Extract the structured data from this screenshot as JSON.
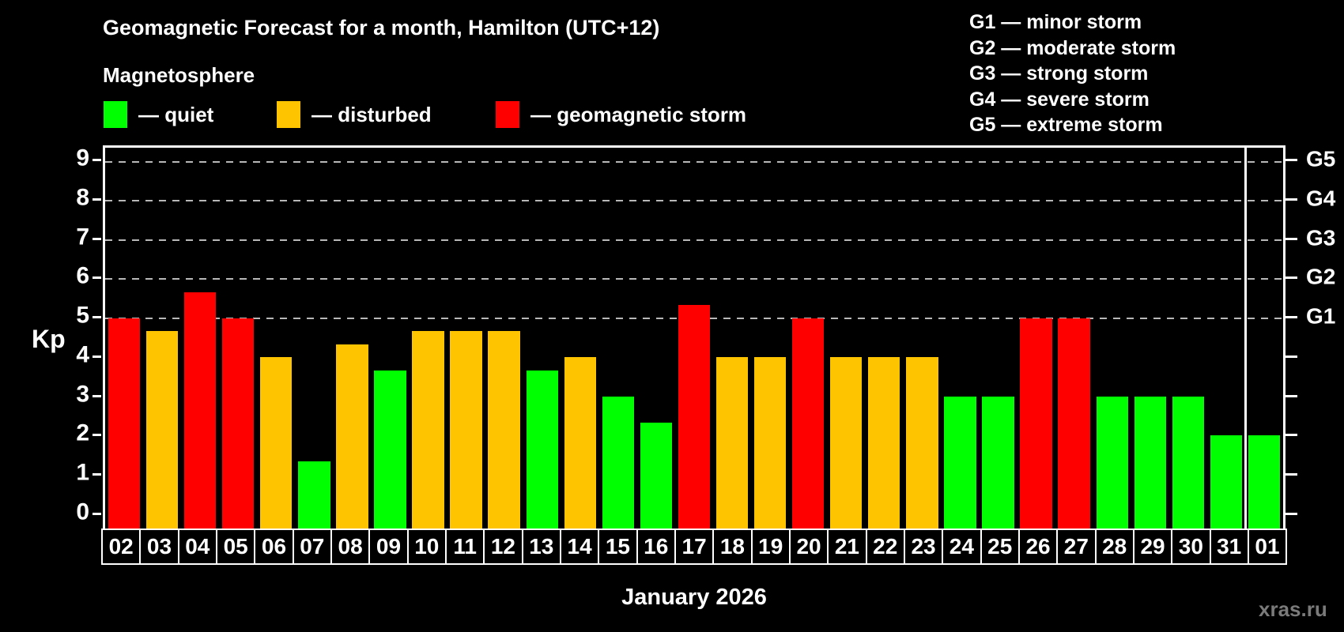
{
  "header": {
    "title": "Geomagnetic Forecast for a month, Hamilton (UTC+12)",
    "subtitle": "Magnetosphere"
  },
  "legend": {
    "items": [
      {
        "status": "quiet",
        "label": "— quiet",
        "color": "#00ff00"
      },
      {
        "status": "disturbed",
        "label": "— disturbed",
        "color": "#ffc400"
      },
      {
        "status": "storm",
        "label": "— geomagnetic storm",
        "color": "#ff0000"
      }
    ]
  },
  "g_legend": {
    "lines": [
      "G1 — minor storm",
      "G2 — moderate storm",
      "G3 — strong storm",
      "G4 — severe storm",
      "G5 — extreme storm"
    ]
  },
  "axes": {
    "y_left_label": "Kp",
    "x_label": "January 2026"
  },
  "watermark": "xras.ru",
  "chart_data": {
    "type": "bar",
    "title": "Geomagnetic Forecast for a month, Hamilton (UTC+12)",
    "subtitle": "Magnetosphere",
    "categories": [
      "02",
      "03",
      "04",
      "05",
      "06",
      "07",
      "08",
      "09",
      "10",
      "11",
      "12",
      "13",
      "14",
      "15",
      "16",
      "17",
      "18",
      "19",
      "20",
      "21",
      "22",
      "23",
      "24",
      "25",
      "26",
      "27",
      "28",
      "29",
      "30",
      "31",
      "01"
    ],
    "values": [
      5.0,
      4.67,
      5.67,
      5.0,
      4.0,
      1.33,
      4.33,
      3.67,
      4.67,
      4.67,
      4.67,
      3.67,
      4.0,
      3.0,
      2.33,
      5.33,
      4.0,
      4.0,
      5.0,
      4.0,
      4.0,
      4.0,
      3.0,
      3.0,
      5.0,
      5.0,
      3.0,
      3.0,
      3.0,
      2.0,
      2.0
    ],
    "statuses": [
      "storm",
      "disturbed",
      "storm",
      "storm",
      "disturbed",
      "quiet",
      "disturbed",
      "quiet",
      "disturbed",
      "disturbed",
      "disturbed",
      "quiet",
      "disturbed",
      "quiet",
      "quiet",
      "storm",
      "disturbed",
      "disturbed",
      "storm",
      "disturbed",
      "disturbed",
      "disturbed",
      "quiet",
      "quiet",
      "storm",
      "storm",
      "quiet",
      "quiet",
      "quiet",
      "quiet",
      "quiet"
    ],
    "status_colors": {
      "quiet": "#00ff00",
      "disturbed": "#ffc400",
      "storm": "#ff0000"
    },
    "xlabel": "January 2026",
    "ylabel": "Kp",
    "ylim": [
      -0.38,
      9.36
    ],
    "y_ticks": [
      0,
      1,
      2,
      3,
      4,
      5,
      6,
      7,
      8,
      9
    ],
    "gridlines_at": [
      5,
      6,
      7,
      8,
      9
    ],
    "grid": "horizontal dashed lines at storm levels G1–G5 only",
    "right_axis_labels": [
      {
        "kp": 5,
        "label": "G1"
      },
      {
        "kp": 6,
        "label": "G2"
      },
      {
        "kp": 7,
        "label": "G3"
      },
      {
        "kp": 8,
        "label": "G4"
      },
      {
        "kp": 9,
        "label": "G5"
      }
    ],
    "month_boundary_after_index": 29,
    "legend_position": "top-left"
  }
}
